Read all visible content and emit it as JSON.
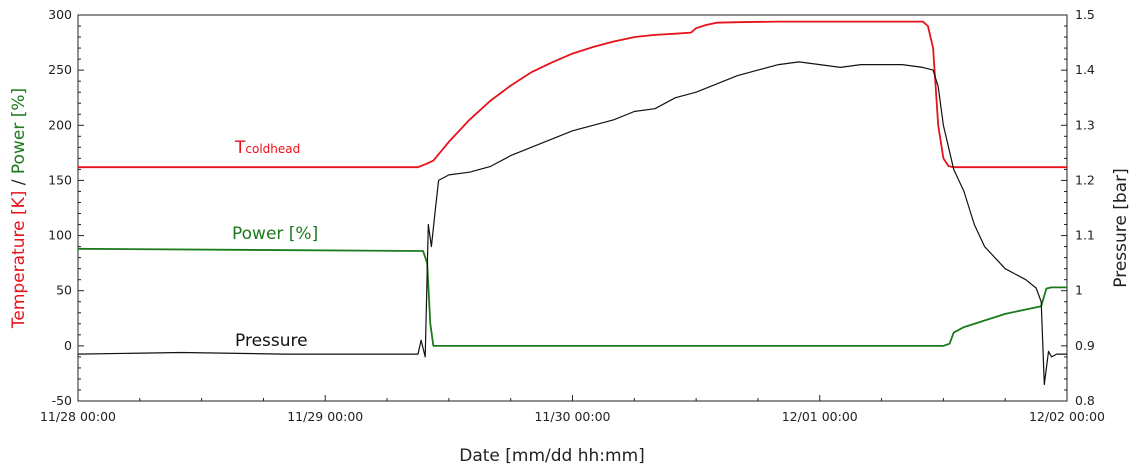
{
  "chart_data": {
    "type": "line",
    "xlabel": "Date [mm/dd hh:mm]",
    "ylabel_left_parts": [
      {
        "text": "Temperature [K]",
        "color": "#e8121a"
      },
      {
        "text": " / ",
        "color": "#222222"
      },
      {
        "text": "Power [%]",
        "color": "#1b7a1b"
      }
    ],
    "ylabel_right": "Pressure [bar]",
    "x_ticks": [
      "11/28 00:00",
      "11/29 00:00",
      "11/30 00:00",
      "12/01 00:00",
      "12/02 00:00"
    ],
    "x_range_hours": [
      0,
      96
    ],
    "y_left_range": [
      -50,
      300
    ],
    "y_left_ticks": [
      -50,
      0,
      50,
      100,
      150,
      200,
      250,
      300
    ],
    "y_right_range": [
      0.8,
      1.5
    ],
    "y_right_ticks": [
      "0.8",
      "0.9",
      "1",
      "1.1",
      "1.2",
      "1.3",
      "1.4",
      "1.5"
    ],
    "annotations": {
      "tcoldhead_main": "T",
      "tcoldhead_sub": "coldhead",
      "power": "Power [%]",
      "pressure": "Pressure"
    },
    "series": [
      {
        "name": "Tcoldhead",
        "axis": "left",
        "color": "#e8121a",
        "x": [
          0,
          33,
          33.8,
          34.5,
          36,
          38,
          40,
          42,
          44,
          46,
          48,
          50,
          52,
          54,
          56,
          58,
          59.5,
          60,
          61,
          62,
          64,
          68,
          72,
          76,
          80,
          82,
          82.5,
          83,
          83.5,
          84,
          84.5,
          85,
          96
        ],
        "values": [
          162,
          162,
          165,
          168,
          185,
          205,
          222,
          236,
          248,
          257,
          265,
          271,
          276,
          280,
          282,
          283,
          284,
          288,
          291,
          293,
          293.5,
          294,
          294,
          294,
          294,
          294,
          290,
          270,
          200,
          170,
          163,
          162,
          162
        ]
      },
      {
        "name": "Power",
        "axis": "left",
        "color": "#1b7a1b",
        "x": [
          0,
          33,
          33.5,
          33.9,
          34.2,
          34.5,
          60,
          70,
          80,
          84,
          84.6,
          85,
          86,
          88,
          90,
          92,
          93.5,
          94,
          94.5,
          96
        ],
        "values": [
          88,
          86,
          86,
          75,
          20,
          0,
          0,
          0,
          0,
          0,
          2,
          12,
          17,
          23,
          29,
          33,
          36,
          52,
          53,
          53
        ]
      },
      {
        "name": "Pressure",
        "axis": "right",
        "color": "#111111",
        "x": [
          0,
          10,
          20,
          30,
          33,
          33.3,
          33.7,
          34,
          34.3,
          34.7,
          35,
          36,
          38,
          40,
          42,
          44,
          46,
          48,
          50,
          52,
          54,
          56,
          58,
          60,
          62,
          64,
          66,
          68,
          70,
          72,
          74,
          76,
          78,
          80,
          82,
          83,
          83.5,
          84,
          85,
          86,
          87,
          88,
          90,
          92,
          93,
          93.5,
          93.8,
          94.2,
          94.5,
          95,
          96
        ],
        "values": [
          0.885,
          0.888,
          0.885,
          0.885,
          0.885,
          0.91,
          0.88,
          1.12,
          1.08,
          1.15,
          1.2,
          1.21,
          1.215,
          1.225,
          1.245,
          1.26,
          1.275,
          1.29,
          1.3,
          1.31,
          1.325,
          1.33,
          1.35,
          1.36,
          1.375,
          1.39,
          1.4,
          1.41,
          1.415,
          1.41,
          1.405,
          1.41,
          1.41,
          1.41,
          1.405,
          1.4,
          1.37,
          1.3,
          1.22,
          1.18,
          1.12,
          1.08,
          1.04,
          1.02,
          1.005,
          0.98,
          0.83,
          0.89,
          0.88,
          0.885,
          0.885
        ]
      }
    ],
    "grid": false
  }
}
